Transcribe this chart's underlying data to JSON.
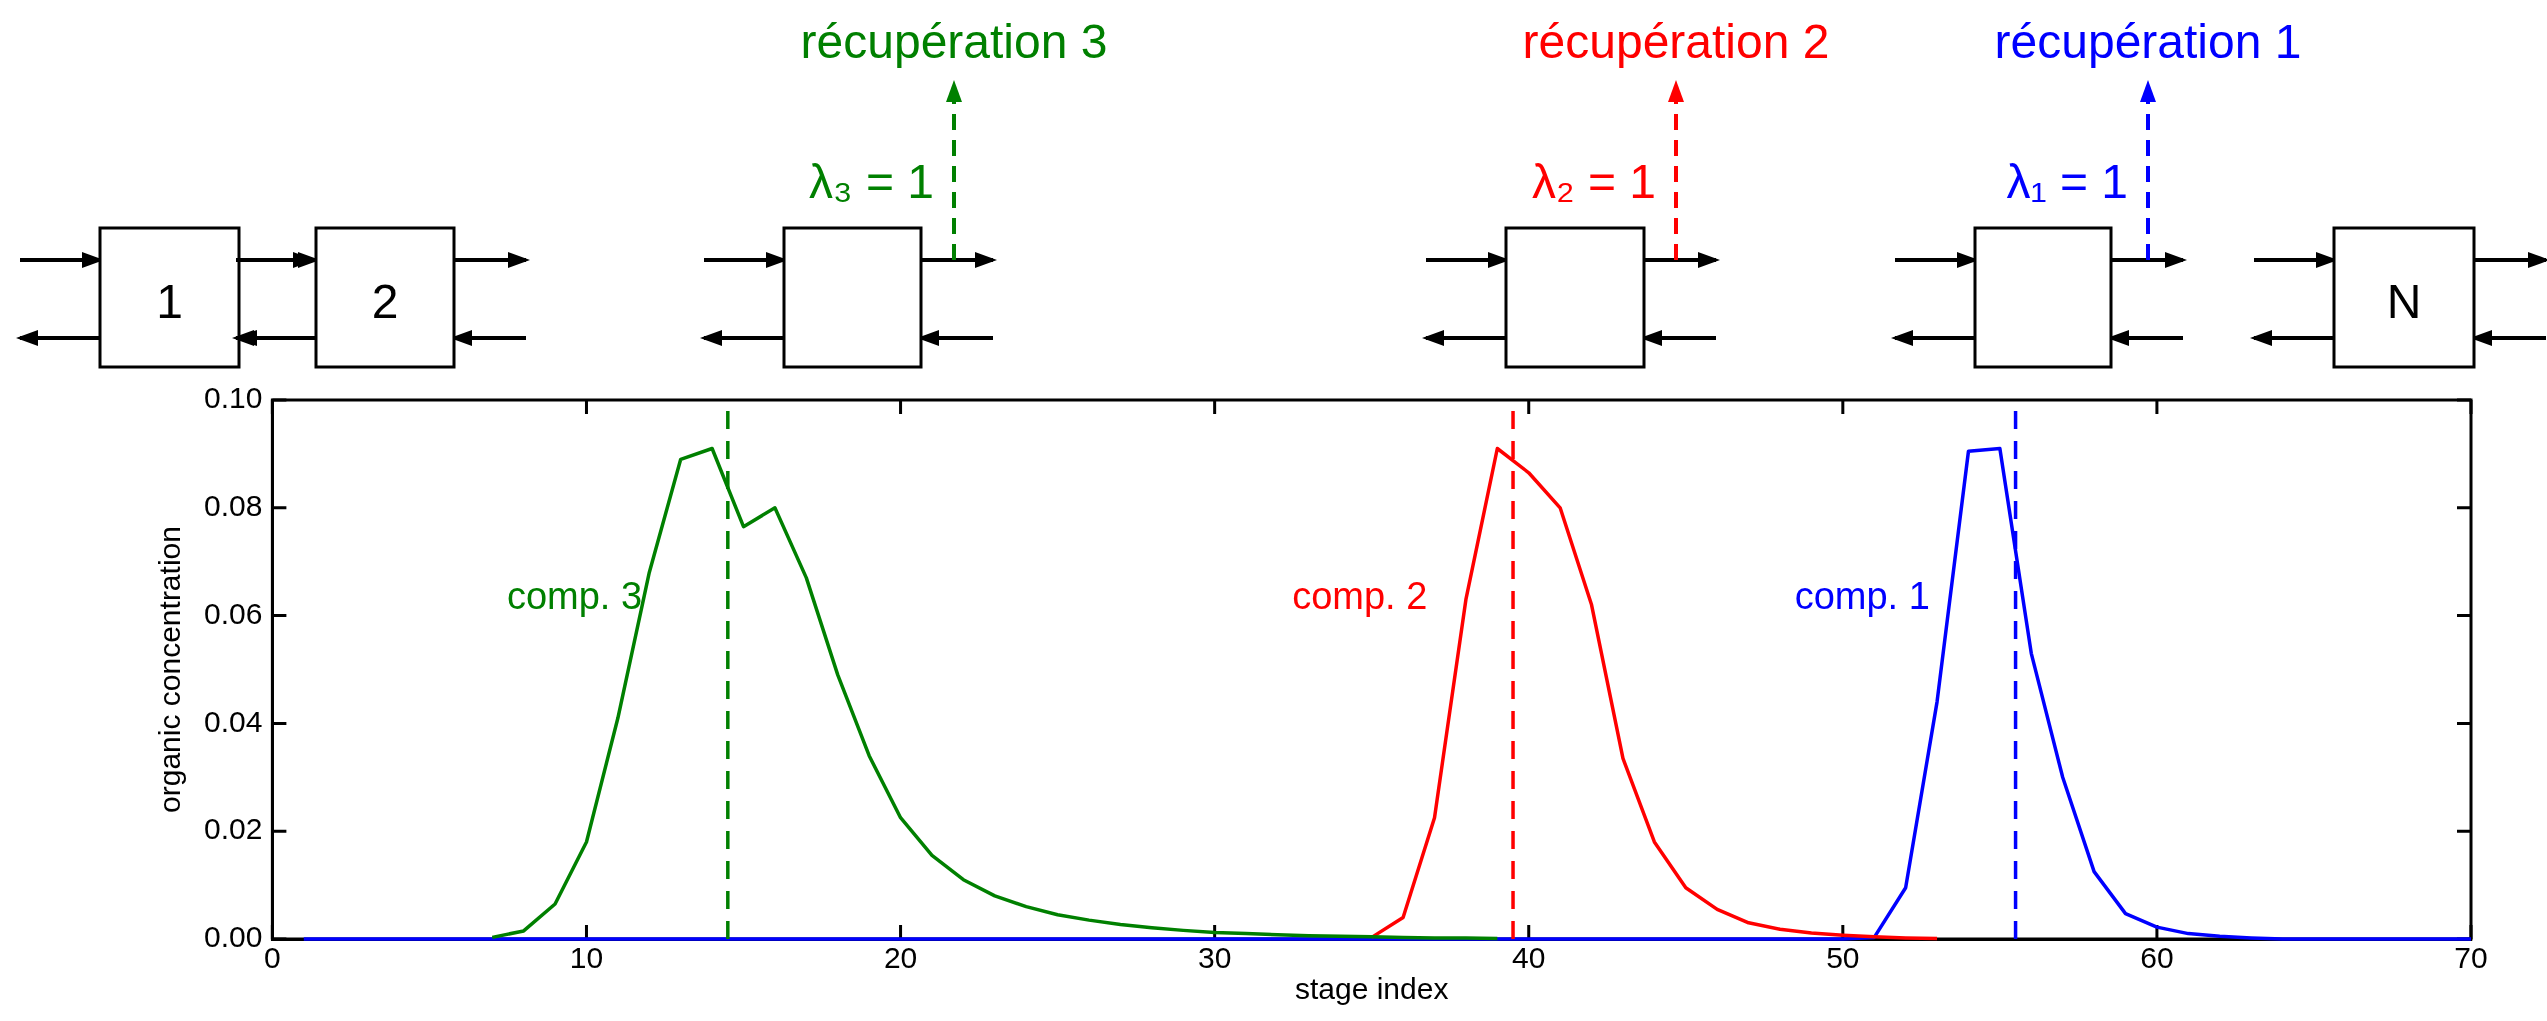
{
  "chart_data": {
    "type": "line",
    "xlabel": "stage index",
    "ylabel": "organic concentration",
    "x": [
      1,
      2,
      3,
      4,
      5,
      6,
      7,
      8,
      9,
      10,
      11,
      12,
      13,
      14,
      15,
      16,
      17,
      18,
      19,
      20,
      21,
      22,
      23,
      24,
      25,
      26,
      27,
      28,
      29,
      30,
      31,
      32,
      33,
      34,
      35,
      36,
      37,
      38,
      39,
      40,
      41,
      42,
      43,
      44,
      45,
      46,
      47,
      48,
      49,
      50,
      51,
      52,
      53,
      54,
      55,
      56,
      57,
      58,
      59,
      60,
      61,
      62,
      63,
      64,
      65,
      66,
      67,
      68,
      69,
      70
    ],
    "series": [
      {
        "name": "comp. 3",
        "color": "#008000",
        "values": [
          null,
          null,
          null,
          null,
          null,
          null,
          0.0003,
          0.0015,
          0.0065,
          0.018,
          0.041,
          0.068,
          0.089,
          0.091,
          0.0765,
          0.08,
          0.067,
          0.049,
          0.034,
          0.0225,
          0.0155,
          0.011,
          0.008,
          0.006,
          0.0045,
          0.0035,
          0.0027,
          0.0021,
          0.0016,
          0.0012,
          0.001,
          0.0008,
          0.0006,
          0.0005,
          0.0004,
          0.0003,
          0.0002,
          0.0002,
          0.0001,
          null,
          null,
          null,
          null,
          null,
          null,
          null,
          null,
          null,
          null,
          null,
          null,
          null,
          null,
          null,
          null,
          null,
          null,
          null,
          null,
          null,
          null,
          null,
          null,
          null,
          null,
          null,
          null,
          null,
          null,
          null
        ]
      },
      {
        "name": "comp. 2",
        "color": "#ff0000",
        "values": [
          null,
          null,
          null,
          null,
          null,
          null,
          null,
          null,
          null,
          null,
          null,
          null,
          null,
          null,
          null,
          null,
          null,
          null,
          null,
          null,
          null,
          null,
          null,
          null,
          null,
          null,
          null,
          null,
          null,
          null,
          null,
          null,
          null,
          null,
          0.0003,
          0.004,
          0.0225,
          0.063,
          0.091,
          0.0865,
          0.08,
          0.062,
          0.0335,
          0.018,
          0.0095,
          0.0055,
          0.003,
          0.0018,
          0.0011,
          0.0007,
          0.0004,
          0.0002,
          0.0001,
          null,
          null,
          null,
          null,
          null,
          null,
          null,
          null,
          null,
          null,
          null,
          null,
          null,
          null,
          null,
          null,
          null
        ]
      },
      {
        "name": "comp. 1",
        "color": "#0000ff",
        "values": [
          0,
          0,
          0,
          0,
          0,
          0,
          0,
          0,
          0,
          0,
          0,
          0,
          0,
          0,
          0,
          0,
          0,
          0,
          0,
          0,
          0,
          0,
          0,
          0,
          0,
          0,
          0,
          0,
          0,
          0,
          0,
          0,
          0,
          0,
          0,
          0,
          0,
          0,
          0,
          0,
          0,
          0,
          0,
          0,
          0,
          0,
          0,
          0,
          0,
          0,
          0.0003,
          0.0095,
          0.044,
          0.0905,
          0.091,
          0.053,
          0.03,
          0.0125,
          0.0047,
          0.0022,
          0.001,
          0.0005,
          0.0002,
          0,
          0,
          0,
          0,
          0,
          0,
          0
        ]
      }
    ],
    "xlim": [
      0,
      70
    ],
    "xticks": [
      0,
      10,
      20,
      30,
      40,
      50,
      60,
      70
    ],
    "ylim": [
      0,
      0.1
    ],
    "yticks": [
      {
        "value": 0,
        "label": "0.00"
      },
      {
        "value": 0.02,
        "label": "0.02"
      },
      {
        "value": 0.04,
        "label": "0.04"
      },
      {
        "value": 0.06,
        "label": "0.06"
      },
      {
        "value": 0.08,
        "label": "0.08"
      },
      {
        "value": 0.1,
        "label": "0.10"
      }
    ],
    "ref_lines": [
      {
        "axis": "x",
        "value": 14.5,
        "color": "#008000",
        "line_style": "dashed"
      },
      {
        "axis": "x",
        "value": 39.5,
        "color": "#ff0000",
        "line_style": "dashed"
      },
      {
        "axis": "x",
        "value": 55.5,
        "color": "#0000ff",
        "line_style": "dashed"
      }
    ],
    "annotations": [
      "1",
      "2",
      "λ₃ = 1",
      "récupération 3",
      "λ₂ = 1",
      "récupération 2",
      "λ₁ = 1",
      "récupération 1",
      "N"
    ],
    "grid": false,
    "legend": false,
    "marker": "none",
    "line_style": "solid"
  }
}
